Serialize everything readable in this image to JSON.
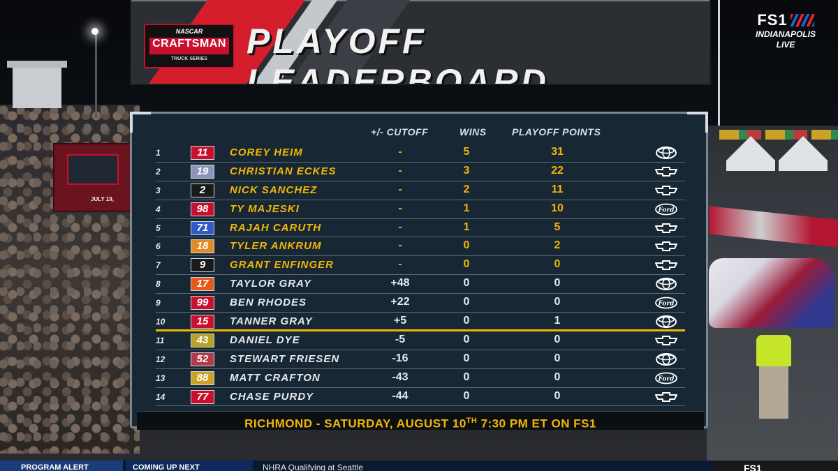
{
  "header": {
    "series_logo": {
      "top": "NASCAR",
      "main": "CRAFTSMAN",
      "sub": "TRUCK SERIES"
    },
    "title": "PLAYOFF LEADERBOARD"
  },
  "bug": {
    "network": "FS1",
    "location_line1": "INDIANAPOLIS",
    "location_line2": "LIVE"
  },
  "background": {
    "left_banner_text": "JULY 19,"
  },
  "columns": {
    "cutoff": "+/- CUTOFF",
    "wins": "WINS",
    "playoff_points": "PLAYOFF POINTS"
  },
  "rows": [
    {
      "pos": "1",
      "number": "11",
      "number_color": "#c8102e",
      "driver": "COREY HEIM",
      "cutoff": "-",
      "wins": "5",
      "points": "31",
      "make": "toyota",
      "status": "in"
    },
    {
      "pos": "2",
      "number": "19",
      "number_color": "#8c94b8",
      "driver": "CHRISTIAN ECKES",
      "cutoff": "-",
      "wins": "3",
      "points": "22",
      "make": "chevrolet",
      "status": "in"
    },
    {
      "pos": "3",
      "number": "2",
      "number_color": "#1a1a1a",
      "driver": "NICK SANCHEZ",
      "cutoff": "-",
      "wins": "2",
      "points": "11",
      "make": "chevrolet",
      "status": "in"
    },
    {
      "pos": "4",
      "number": "98",
      "number_color": "#c8102e",
      "driver": "TY MAJESKI",
      "cutoff": "-",
      "wins": "1",
      "points": "10",
      "make": "ford",
      "status": "in"
    },
    {
      "pos": "5",
      "number": "71",
      "number_color": "#2e5cc4",
      "driver": "RAJAH CARUTH",
      "cutoff": "-",
      "wins": "1",
      "points": "5",
      "make": "chevrolet",
      "status": "in"
    },
    {
      "pos": "6",
      "number": "18",
      "number_color": "#e28a26",
      "driver": "TYLER ANKRUM",
      "cutoff": "-",
      "wins": "0",
      "points": "2",
      "make": "chevrolet",
      "status": "in"
    },
    {
      "pos": "7",
      "number": "9",
      "number_color": "#1a1a1a",
      "driver": "GRANT ENFINGER",
      "cutoff": "-",
      "wins": "0",
      "points": "0",
      "make": "chevrolet",
      "status": "in"
    },
    {
      "pos": "8",
      "number": "17",
      "number_color": "#e25a1c",
      "driver": "TAYLOR GRAY",
      "cutoff": "+48",
      "wins": "0",
      "points": "0",
      "make": "toyota",
      "status": "out"
    },
    {
      "pos": "9",
      "number": "99",
      "number_color": "#c8102e",
      "driver": "BEN RHODES",
      "cutoff": "+22",
      "wins": "0",
      "points": "0",
      "make": "ford",
      "status": "out"
    },
    {
      "pos": "10",
      "number": "15",
      "number_color": "#c8102e",
      "driver": "TANNER GRAY",
      "cutoff": "+5",
      "wins": "0",
      "points": "1",
      "make": "toyota",
      "status": "out"
    },
    {
      "pos": "11",
      "number": "43",
      "number_color": "#b6a12a",
      "driver": "DANIEL DYE",
      "cutoff": "-5",
      "wins": "0",
      "points": "0",
      "make": "chevrolet",
      "status": "out"
    },
    {
      "pos": "12",
      "number": "52",
      "number_color": "#b23a4a",
      "driver": "STEWART FRIESEN",
      "cutoff": "-16",
      "wins": "0",
      "points": "0",
      "make": "toyota",
      "status": "out"
    },
    {
      "pos": "13",
      "number": "88",
      "number_color": "#c9a227",
      "driver": "MATT CRAFTON",
      "cutoff": "-43",
      "wins": "0",
      "points": "0",
      "make": "ford",
      "status": "out"
    },
    {
      "pos": "14",
      "number": "77",
      "number_color": "#c8102e",
      "driver": "CHASE PURDY",
      "cutoff": "-44",
      "wins": "0",
      "points": "0",
      "make": "chevrolet",
      "status": "out"
    }
  ],
  "cutline_after_pos": "10",
  "footer": {
    "text_before": "RICHMOND - SATURDAY, AUGUST 10",
    "ordinal": "TH",
    "text_after": " 7:30 PM ET ON FS1"
  },
  "ticker": {
    "alert": "PROGRAM ALERT",
    "next": "COMING UP NEXT",
    "text": "NHRA Qualifying at Seattle",
    "network": "FS1"
  },
  "colors": {
    "accent_yellow": "#f2b705",
    "board_bg": "#172734",
    "header_red": "#d51e2b"
  }
}
